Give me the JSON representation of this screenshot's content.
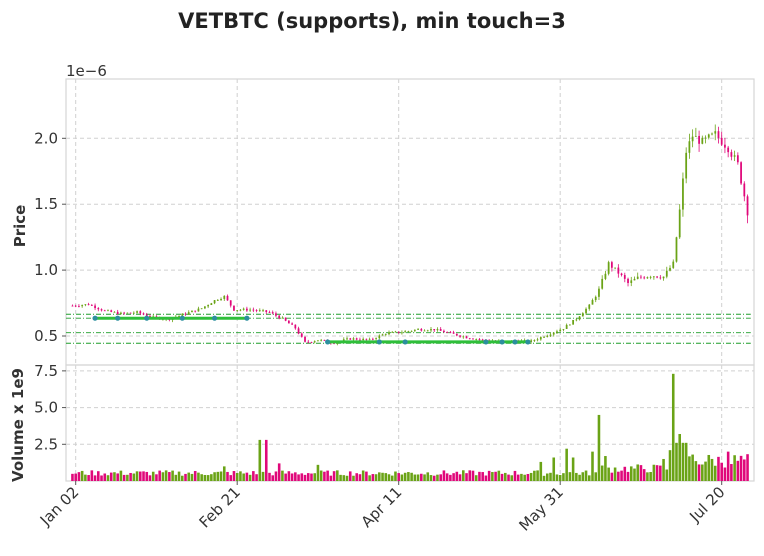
{
  "chart_data": {
    "type": "candlestick",
    "title": "VETBTC (supports), min touch=3",
    "price_panel": {
      "ylabel": "Price",
      "y_exponent_label": "1e−6",
      "yticks": [
        {
          "value": 0.5,
          "label": "0.5"
        },
        {
          "value": 1.0,
          "label": "1.0"
        },
        {
          "value": 1.5,
          "label": "1.5"
        },
        {
          "value": 2.0,
          "label": "2.0"
        }
      ],
      "ylim": [
        0.28,
        2.45
      ],
      "grid": true
    },
    "volume_panel": {
      "ylabel": "Volume x 1e9",
      "yticks": [
        {
          "value": 2.5,
          "label": "2.5"
        },
        {
          "value": 5.0,
          "label": "5.0"
        },
        {
          "value": 7.5,
          "label": "7.5"
        }
      ],
      "ylim": [
        0,
        7.9
      ],
      "grid": true
    },
    "x_range": [
      "2019-12-30",
      "2020-07-30"
    ],
    "xticks": [
      {
        "date": "2020-01-02",
        "label": "Jan 02"
      },
      {
        "date": "2020-02-21",
        "label": "Feb 21"
      },
      {
        "date": "2020-04-11",
        "label": "Apr 11"
      },
      {
        "date": "2020-05-31",
        "label": "May 31"
      },
      {
        "date": "2020-07-20",
        "label": "Jul 20"
      }
    ],
    "supports": [
      {
        "level": 0.635,
        "from": "2020-01-08",
        "to": "2020-02-24",
        "touches": [
          "2020-01-08",
          "2020-01-15",
          "2020-01-24",
          "2020-02-04",
          "2020-02-14",
          "2020-02-24"
        ]
      },
      {
        "level": 0.455,
        "from": "2020-03-20",
        "to": "2020-05-21",
        "touches": [
          "2020-03-20",
          "2020-04-05",
          "2020-04-13",
          "2020-05-08",
          "2020-05-13",
          "2020-05-17",
          "2020-05-21"
        ]
      }
    ],
    "support_levels": [
      0.445,
      0.525,
      0.635,
      0.665
    ],
    "colors": {
      "up": "#6aa316",
      "down": "#e0087a",
      "support_line": "#2fbf3a",
      "support_dash": "#1e9e2a",
      "touch_marker": "#2c8f9e",
      "grid": "#d0d0d0",
      "title": "#222222"
    },
    "anchors": [
      [
        "2020-01-01",
        0.73
      ],
      [
        "2020-01-06",
        0.74
      ],
      [
        "2020-01-11",
        0.69
      ],
      [
        "2020-01-16",
        0.67
      ],
      [
        "2020-01-21",
        0.68
      ],
      [
        "2020-01-26",
        0.64
      ],
      [
        "2020-01-31",
        0.63
      ],
      [
        "2020-02-05",
        0.67
      ],
      [
        "2020-02-10",
        0.71
      ],
      [
        "2020-02-14",
        0.77
      ],
      [
        "2020-02-17",
        0.8
      ],
      [
        "2020-02-20",
        0.7
      ],
      [
        "2020-02-25",
        0.7
      ],
      [
        "2020-03-02",
        0.68
      ],
      [
        "2020-03-06",
        0.63
      ],
      [
        "2020-03-10",
        0.56
      ],
      [
        "2020-03-13",
        0.45
      ],
      [
        "2020-03-17",
        0.47
      ],
      [
        "2020-03-22",
        0.45
      ],
      [
        "2020-03-27",
        0.48
      ],
      [
        "2020-04-02",
        0.47
      ],
      [
        "2020-04-07",
        0.52
      ],
      [
        "2020-04-12",
        0.53
      ],
      [
        "2020-04-17",
        0.55
      ],
      [
        "2020-04-22",
        0.55
      ],
      [
        "2020-04-27",
        0.52
      ],
      [
        "2020-05-02",
        0.49
      ],
      [
        "2020-05-07",
        0.47
      ],
      [
        "2020-05-12",
        0.46
      ],
      [
        "2020-05-17",
        0.46
      ],
      [
        "2020-05-22",
        0.46
      ],
      [
        "2020-05-27",
        0.51
      ],
      [
        "2020-06-01",
        0.56
      ],
      [
        "2020-06-05",
        0.63
      ],
      [
        "2020-06-09",
        0.73
      ],
      [
        "2020-06-12",
        0.85
      ],
      [
        "2020-06-15",
        1.05
      ],
      [
        "2020-06-18",
        0.98
      ],
      [
        "2020-06-21",
        0.9
      ],
      [
        "2020-06-24",
        0.94
      ],
      [
        "2020-06-28",
        0.96
      ],
      [
        "2020-07-02",
        0.95
      ],
      [
        "2020-07-05",
        1.05
      ],
      [
        "2020-07-07",
        1.45
      ],
      [
        "2020-07-09",
        1.9
      ],
      [
        "2020-07-11",
        2.02
      ],
      [
        "2020-07-14",
        1.97
      ],
      [
        "2020-07-18",
        2.03
      ],
      [
        "2020-07-22",
        1.93
      ],
      [
        "2020-07-25",
        1.8
      ],
      [
        "2020-07-28",
        1.45
      ]
    ],
    "volume_spikes": [
      [
        "2020-02-28",
        2.8
      ],
      [
        "2020-03-01",
        2.8
      ],
      [
        "2020-03-05",
        1.2
      ],
      [
        "2020-03-17",
        1.1
      ],
      [
        "2020-05-25",
        1.3
      ],
      [
        "2020-05-29",
        1.6
      ],
      [
        "2020-06-02",
        2.2
      ],
      [
        "2020-06-04",
        1.6
      ],
      [
        "2020-06-10",
        2.0
      ],
      [
        "2020-06-12",
        4.5
      ],
      [
        "2020-06-14",
        1.7
      ],
      [
        "2020-07-02",
        1.5
      ],
      [
        "2020-07-04",
        2.1
      ],
      [
        "2020-07-05",
        7.3
      ],
      [
        "2020-07-06",
        2.6
      ],
      [
        "2020-07-07",
        3.2
      ],
      [
        "2020-07-08",
        2.6
      ],
      [
        "2020-07-09",
        2.6
      ],
      [
        "2020-07-11",
        1.8
      ],
      [
        "2020-07-22",
        2.0
      ]
    ]
  }
}
